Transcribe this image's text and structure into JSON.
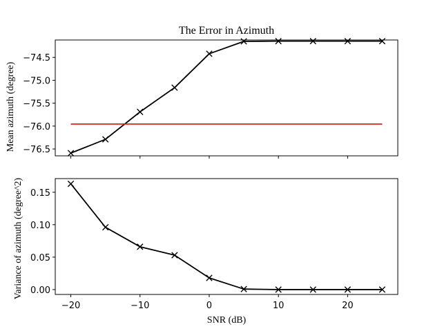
{
  "chart_data": [
    {
      "type": "line",
      "title": "The Error in Azimuth",
      "xlabel": "",
      "ylabel": "Mean azimuth (degree)",
      "x": [
        -20,
        -15,
        -10,
        -5,
        0,
        5,
        10,
        15,
        20,
        25
      ],
      "xlim": [
        -22.25,
        27.25
      ],
      "ylim": [
        -76.65,
        -74.12
      ],
      "yticks": [
        -76.5,
        -76.0,
        -75.5,
        -75.0,
        -74.5
      ],
      "ytick_labels": [
        "−76.5",
        "−76.0",
        "−75.5",
        "−75.0",
        "−74.5"
      ],
      "xticks": [
        -20,
        -10,
        0,
        10,
        20
      ],
      "xtick_labels": [
        "",
        "",
        "",
        "",
        ""
      ],
      "grid": false,
      "series": [
        {
          "values": [
            -76.59,
            -76.29,
            -75.69,
            -75.16,
            -74.42,
            -74.15,
            -74.145,
            -74.145,
            -74.145,
            -74.145
          ],
          "color": "#000000",
          "marker": "x"
        },
        {
          "x": [
            -20,
            25
          ],
          "values": [
            -75.955,
            -75.955
          ],
          "color": "#e41a1c",
          "marker": "none"
        }
      ]
    },
    {
      "type": "line",
      "title": "",
      "xlabel": "SNR (dB)",
      "ylabel": "Variance of azimuth (degree^2)",
      "x": [
        -20,
        -15,
        -10,
        -5,
        0,
        5,
        10,
        15,
        20,
        25
      ],
      "xlim": [
        -22.25,
        27.25
      ],
      "ylim": [
        -0.0075,
        0.171
      ],
      "yticks": [
        0.0,
        0.05,
        0.1,
        0.15
      ],
      "ytick_labels": [
        "0.00",
        "0.05",
        "0.10",
        "0.15"
      ],
      "xticks": [
        -20,
        -10,
        0,
        10,
        20
      ],
      "xtick_labels": [
        "−20",
        "−10",
        "0",
        "10",
        "20"
      ],
      "grid": false,
      "series": [
        {
          "values": [
            0.163,
            0.096,
            0.066,
            0.053,
            0.018,
            0.0008,
            0.0,
            0.0,
            0.0,
            0.0
          ],
          "color": "#000000",
          "marker": "x"
        }
      ]
    }
  ]
}
